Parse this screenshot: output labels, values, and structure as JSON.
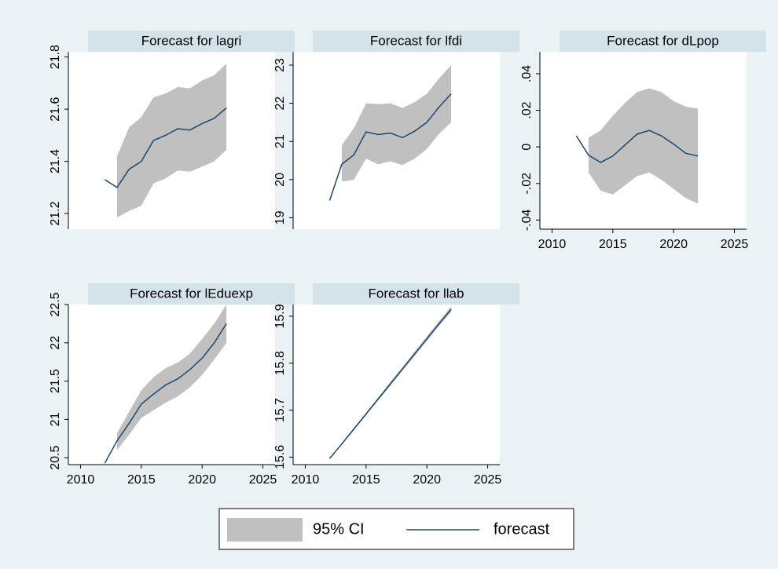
{
  "chart_data": [
    {
      "type": "line",
      "title": "Forecast for lagri",
      "x": [
        2012,
        2013,
        2014,
        2015,
        2016,
        2017,
        2018,
        2019,
        2020,
        2021,
        2022
      ],
      "series": [
        {
          "name": "95% CI",
          "color": "#c0c0c0",
          "upper": [
            null,
            21.42,
            21.53,
            21.57,
            21.645,
            21.66,
            21.685,
            21.68,
            21.71,
            21.73,
            21.775
          ],
          "lower": [
            null,
            21.185,
            21.21,
            21.23,
            21.315,
            21.335,
            21.365,
            21.36,
            21.38,
            21.4,
            21.445
          ]
        },
        {
          "name": "forecast",
          "color": "#1a476f",
          "values": [
            21.33,
            21.3,
            21.37,
            21.4,
            21.48,
            21.5,
            21.525,
            21.52,
            21.545,
            21.565,
            21.605
          ]
        }
      ],
      "xlim": [
        2009,
        2026
      ],
      "ylim": [
        21.14,
        21.82
      ],
      "yticks": [
        21.2,
        21.4,
        21.6,
        21.8
      ]
    },
    {
      "type": "line",
      "title": "Forecast for lfdi",
      "x": [
        2012,
        2013,
        2014,
        2015,
        2016,
        2017,
        2018,
        2019,
        2020,
        2021,
        2022
      ],
      "series": [
        {
          "color": "#c0c0c0",
          "upper": [
            null,
            20.9,
            21.35,
            22.0,
            21.98,
            22.0,
            21.88,
            22.03,
            22.25,
            22.65,
            23.0
          ],
          "lower": [
            null,
            19.95,
            20.0,
            20.55,
            20.4,
            20.48,
            20.38,
            20.55,
            20.8,
            21.2,
            21.5
          ]
        },
        {
          "color": "#1a476f",
          "values": [
            19.45,
            20.4,
            20.65,
            21.25,
            21.18,
            21.22,
            21.1,
            21.27,
            21.5,
            21.9,
            22.25
          ]
        }
      ],
      "xlim": [
        2009,
        2026
      ],
      "ylim": [
        18.7,
        23.35
      ],
      "yticks": [
        19,
        20,
        21,
        22,
        23
      ]
    },
    {
      "type": "line",
      "title": "Forecast for dLpop",
      "x": [
        2012,
        2013,
        2014,
        2015,
        2016,
        2017,
        2018,
        2019,
        2020,
        2021,
        2022
      ],
      "series": [
        {
          "color": "#c0c0c0",
          "upper": [
            null,
            0.005,
            0.009,
            0.017,
            0.024,
            0.03,
            0.032,
            0.03,
            0.025,
            0.022,
            0.021
          ],
          "lower": [
            null,
            -0.014,
            -0.024,
            -0.026,
            -0.021,
            -0.016,
            -0.014,
            -0.018,
            -0.023,
            -0.028,
            -0.031
          ]
        },
        {
          "color": "#1a476f",
          "values": [
            0.006,
            -0.0045,
            -0.0085,
            -0.005,
            0.001,
            0.007,
            0.009,
            0.006,
            0.0015,
            -0.0035,
            -0.005
          ]
        }
      ],
      "xlim": [
        2009,
        2026
      ],
      "xticks": [
        2010,
        2015,
        2020,
        2025
      ],
      "ylim": [
        -0.045,
        0.052
      ],
      "yticks": [
        {
          "value": -0.04,
          "label": "-.04"
        },
        {
          "value": -0.02,
          "label": "-.02"
        },
        0,
        {
          "value": 0.02,
          "label": ".02"
        },
        {
          "value": 0.04,
          "label": ".04"
        }
      ]
    },
    {
      "type": "line",
      "title": "Forecast for lEduexp",
      "x": [
        2012,
        2013,
        2014,
        2015,
        2016,
        2017,
        2018,
        2019,
        2020,
        2021,
        2022
      ],
      "series": [
        {
          "color": "#c0c0c0",
          "upper": [
            null,
            20.82,
            21.1,
            21.38,
            21.55,
            21.67,
            21.74,
            21.86,
            22.05,
            22.25,
            22.5
          ],
          "lower": [
            null,
            20.6,
            20.8,
            21.02,
            21.12,
            21.22,
            21.3,
            21.42,
            21.58,
            21.78,
            22.0
          ]
        },
        {
          "color": "#1a476f",
          "values": [
            20.43,
            20.72,
            20.95,
            21.2,
            21.33,
            21.45,
            21.53,
            21.65,
            21.8,
            22.0,
            22.25
          ]
        }
      ],
      "xlim": [
        2009,
        2026
      ],
      "xticks": [
        2010,
        2015,
        2020,
        2025
      ],
      "ylim": [
        20.41,
        22.5
      ],
      "yticks": [
        20.5,
        21,
        21.5,
        22,
        22.5
      ]
    },
    {
      "type": "line",
      "title": "Forecast for llab",
      "x": [
        2012,
        2013,
        2014,
        2015,
        2016,
        2017,
        2018,
        2019,
        2020,
        2021,
        2022
      ],
      "series": [
        {
          "color": "#c0c0c0",
          "upper": [
            null,
            15.63,
            15.662,
            15.694,
            15.727,
            15.76,
            15.792,
            15.825,
            15.857,
            15.889,
            15.921
          ],
          "lower": [
            null,
            15.626,
            15.657,
            15.689,
            15.721,
            15.752,
            15.784,
            15.815,
            15.847,
            15.879,
            15.909
          ]
        },
        {
          "color": "#1a476f",
          "values": [
            15.597,
            15.628,
            15.66,
            15.692,
            15.724,
            15.756,
            15.788,
            15.82,
            15.852,
            15.884,
            15.915
          ]
        }
      ],
      "xlim": [
        2009,
        2026
      ],
      "xticks": [
        2010,
        2015,
        2020,
        2025
      ],
      "ylim": [
        15.584,
        15.925
      ],
      "yticks": [
        15.6,
        15.7,
        15.8,
        15.9
      ]
    }
  ]
}
